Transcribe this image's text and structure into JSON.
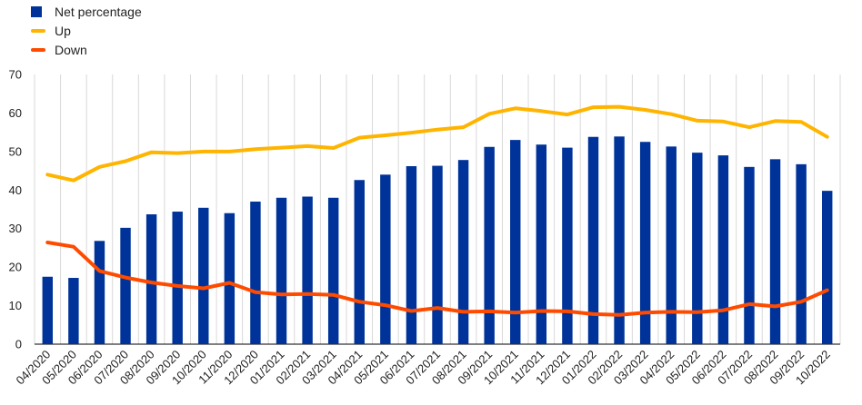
{
  "chart_data": {
    "type": "bar",
    "categories": [
      "04/2020",
      "05/2020",
      "06/2020",
      "07/2020",
      "08/2020",
      "09/2020",
      "10/2020",
      "11/2020",
      "12/2020",
      "01/2021",
      "02/2021",
      "03/2021",
      "04/2021",
      "05/2021",
      "06/2021",
      "07/2021",
      "08/2021",
      "09/2021",
      "10/2021",
      "11/2021",
      "12/2021",
      "01/2022",
      "02/2022",
      "03/2022",
      "04/2022",
      "05/2022",
      "06/2022",
      "07/2022",
      "08/2022",
      "09/2022",
      "10/2022"
    ],
    "series": [
      {
        "name": "Net percentage",
        "type": "bar",
        "color": "#003399",
        "values": [
          17.5,
          17.2,
          26.8,
          30.2,
          33.7,
          34.4,
          35.4,
          34.0,
          37.0,
          38.0,
          38.3,
          38.0,
          42.6,
          44.0,
          46.2,
          46.3,
          47.8,
          51.2,
          53.0,
          51.8,
          51.0,
          53.8,
          53.9,
          52.5,
          51.3,
          49.7,
          49.0,
          46.0,
          48.0,
          46.7,
          39.8
        ]
      },
      {
        "name": "Up",
        "type": "line",
        "color": "#FFB400",
        "values": [
          44.0,
          42.5,
          46.0,
          47.5,
          49.8,
          49.6,
          50.0,
          50.0,
          50.6,
          51.0,
          51.4,
          50.9,
          53.6,
          54.2,
          54.9,
          55.7,
          56.3,
          59.8,
          61.2,
          60.5,
          59.6,
          61.5,
          61.6,
          60.8,
          59.7,
          58.0,
          57.8,
          56.3,
          57.9,
          57.7,
          53.8
        ]
      },
      {
        "name": "Down",
        "type": "line",
        "color": "#FF4B00",
        "values": [
          26.4,
          25.3,
          19.0,
          17.3,
          16.0,
          15.1,
          14.5,
          15.9,
          13.5,
          12.9,
          13.0,
          12.8,
          11.0,
          10.1,
          8.6,
          9.4,
          8.4,
          8.5,
          8.2,
          8.6,
          8.5,
          7.8,
          7.6,
          8.2,
          8.4,
          8.3,
          8.8,
          10.4,
          9.8,
          11.0,
          14.0
        ]
      }
    ],
    "yticks": [
      0,
      10,
      20,
      30,
      40,
      50,
      60,
      70
    ],
    "ylim": [
      0,
      70
    ],
    "grid": "vertical",
    "legend_position": "top-left"
  }
}
